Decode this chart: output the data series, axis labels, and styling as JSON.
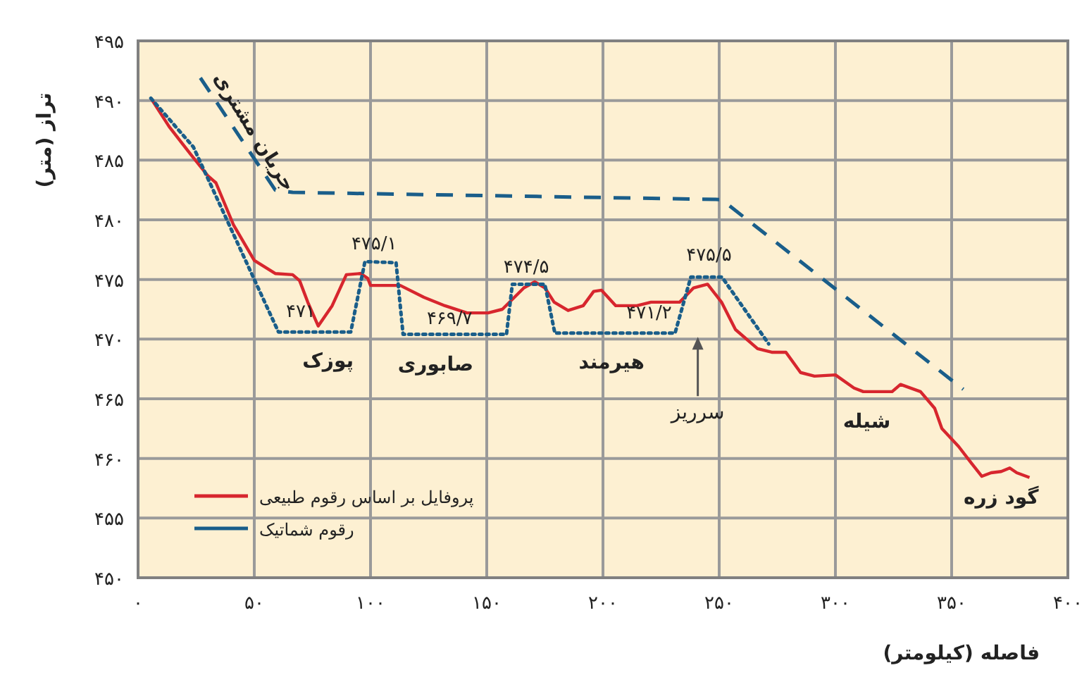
{
  "chart_data": {
    "type": "line",
    "xlabel": "فاصله (کیلومتر)",
    "ylabel": "تراز (متر)",
    "xlim": [
      0,
      400
    ],
    "ylim": [
      450,
      495
    ],
    "xticks": [
      {
        "value": 0,
        "label": "۰"
      },
      {
        "value": 50,
        "label": "۵۰"
      },
      {
        "value": 100,
        "label": "۱۰۰"
      },
      {
        "value": 150,
        "label": "۱۵۰"
      },
      {
        "value": 200,
        "label": "۲۰۰"
      },
      {
        "value": 250,
        "label": "۲۵۰"
      },
      {
        "value": 300,
        "label": "۳۰۰"
      },
      {
        "value": 350,
        "label": "۳۵۰"
      },
      {
        "value": 400,
        "label": "۴۰۰"
      }
    ],
    "yticks": [
      {
        "value": 450,
        "label": "۴۵۰"
      },
      {
        "value": 455,
        "label": "۴۵۵"
      },
      {
        "value": 460,
        "label": "۴۶۰"
      },
      {
        "value": 465,
        "label": "۴۶۵"
      },
      {
        "value": 470,
        "label": "۴۷۰"
      },
      {
        "value": 475,
        "label": "۴۷۵"
      },
      {
        "value": 480,
        "label": "۴۸۰"
      },
      {
        "value": 485,
        "label": "۴۸۵"
      },
      {
        "value": 490,
        "label": "۴۹۰"
      },
      {
        "value": 495,
        "label": "۴۹۵"
      }
    ],
    "grid": true,
    "legend": "bottom left",
    "series": [
      {
        "name": "پروفایل بر اساس رقوم طبیعی",
        "color": "#d7262e",
        "line_style": "solid",
        "x": [
          5.5,
          13.4,
          22.6,
          30,
          33.5,
          41,
          50,
          59,
          66.5,
          69.5,
          73,
          77.5,
          83.5,
          89.6,
          95.7,
          98.8,
          100,
          108,
          112.8,
          123,
          132,
          141.5,
          150.6,
          156.7,
          166,
          170.7,
          175,
          179,
          185,
          191.5,
          196,
          199.4,
          205.5,
          214.6,
          220.7,
          233,
          239,
          245,
          251,
          257,
          266.5,
          272.6,
          278.7,
          285,
          291,
          300,
          308,
          312,
          324.4,
          328,
          336.6,
          342.7,
          345.8,
          353,
          358.5,
          363,
          367,
          371.3,
          375,
          378,
          383.5
        ],
        "values": [
          490.2,
          487.8,
          485.5,
          483.7,
          483.1,
          479.6,
          476.6,
          475.5,
          475.4,
          474.9,
          473.1,
          471.1,
          472.8,
          475.4,
          475.5,
          475.1,
          474.5,
          474.5,
          474.5,
          473.5,
          472.8,
          472.2,
          472.2,
          472.5,
          474.3,
          474.8,
          474.3,
          473.1,
          472.4,
          472.8,
          474.0,
          474.1,
          472.8,
          472.8,
          473.1,
          473.1,
          474.3,
          474.6,
          473.1,
          470.8,
          469.2,
          468.9,
          468.9,
          467.2,
          466.9,
          467.0,
          465.9,
          465.6,
          465.6,
          466.2,
          465.6,
          464.2,
          462.5,
          461.0,
          459.6,
          458.5,
          458.8,
          458.9,
          459.2,
          458.8,
          458.4
        ]
      },
      {
        "name": "رقوم شماتیک",
        "color": "#1a5e8a",
        "line_style": "dotted",
        "x": [
          5.5,
          23.8,
          50,
          60.4,
          91.5,
          97.6,
          111,
          114,
          158.5,
          161,
          175,
          179.3,
          231,
          237.8,
          251.2,
          271.3
        ],
        "values": [
          490.2,
          486.1,
          475.0,
          470.6,
          470.6,
          476.5,
          476.4,
          470.4,
          470.4,
          474.6,
          474.6,
          470.5,
          470.5,
          475.2,
          475.2,
          469.6
        ]
      },
      {
        "color": "#1a5e8a",
        "line_style": "dashed",
        "x": [
          26.8,
          59,
          66.5,
          251,
          355
        ],
        "values": [
          491.9,
          482.5,
          482.3,
          481.7,
          465.8
        ]
      }
    ],
    "annotations": [
      {
        "text": "۴۷۱",
        "x": 73,
        "y": 470.6
      },
      {
        "text": "۴۷۵/۱",
        "x": 104,
        "y": 476.5
      },
      {
        "text": "۴۶۹/۷",
        "x": 134,
        "y": 470.4
      },
      {
        "text": "۴۷۴/۵",
        "x": 167,
        "y": 474.6
      },
      {
        "text": "۴۷۱/۲",
        "x": 223.5,
        "y": 470.5
      },
      {
        "text": "۴۷۵/۵",
        "x": 245,
        "y": 475.2
      },
      {
        "text": "پوزک",
        "x": 81.7,
        "y": 470.6
      },
      {
        "text": "صابوری",
        "x": 128,
        "y": 470.4
      },
      "سرریز",
      {
        "text": "هیرمند",
        "x": 203.7,
        "y": 470.5
      },
      {
        "text": "شیله",
        "x": 324.4,
        "y": 465.6
      },
      {
        "text": "گود زره",
        "x": 371.3,
        "y": 458.9
      },
      {
        "text": "جریان مشتری",
        "x": 40,
        "y": 488.05
      }
    ]
  }
}
